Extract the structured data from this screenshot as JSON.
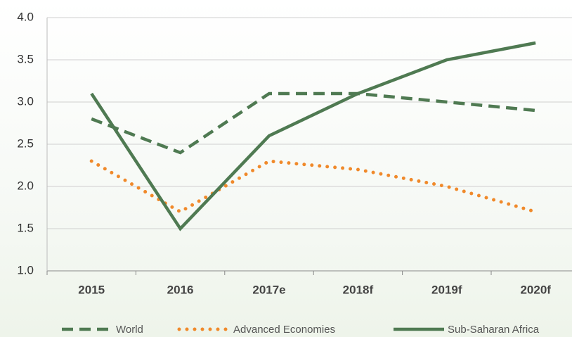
{
  "chart_data": {
    "type": "line",
    "categories": [
      "2015",
      "2016",
      "2017e",
      "2018f",
      "2019f",
      "2020f"
    ],
    "series": [
      {
        "name": "World",
        "color": "#4f7a52",
        "style": "dashed",
        "values": [
          2.8,
          2.4,
          3.1,
          3.1,
          3.0,
          2.9
        ]
      },
      {
        "name": "Advanced Economies",
        "color": "#f0892a",
        "style": "dotted",
        "values": [
          2.3,
          1.7,
          2.3,
          2.2,
          2.0,
          1.7
        ]
      },
      {
        "name": "Sub-Saharan Africa",
        "color": "#4f7a52",
        "style": "solid",
        "values": [
          3.1,
          1.5,
          2.6,
          3.1,
          3.5,
          3.7
        ]
      }
    ],
    "ylim": [
      1,
      4
    ],
    "yticks": [
      {
        "value": 1,
        "label": "1.0"
      },
      1.5,
      {
        "value": 2,
        "label": "2.0"
      },
      2.5,
      {
        "value": 3,
        "label": "3.0"
      },
      3.5,
      {
        "value": 4,
        "label": "4.0"
      }
    ],
    "grid": true
  }
}
